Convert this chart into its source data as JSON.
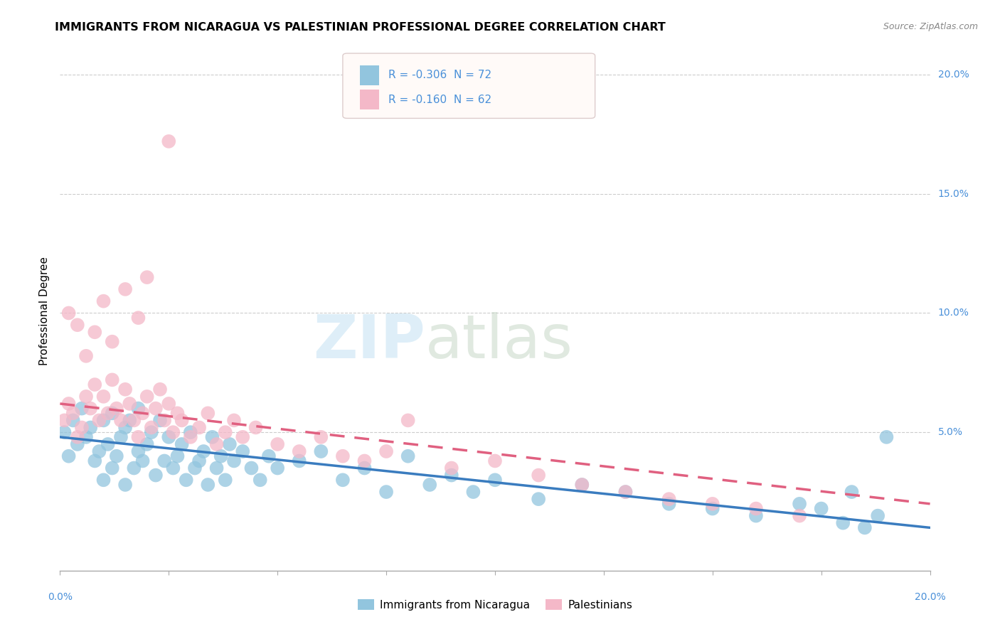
{
  "title": "IMMIGRANTS FROM NICARAGUA VS PALESTINIAN PROFESSIONAL DEGREE CORRELATION CHART",
  "source": "Source: ZipAtlas.com",
  "ylabel": "Professional Degree",
  "legend_blue_r": "-0.306",
  "legend_blue_n": "72",
  "legend_pink_r": "-0.160",
  "legend_pink_n": "62",
  "legend_label_blue": "Immigrants from Nicaragua",
  "legend_label_pink": "Palestinians",
  "color_blue": "#92c5de",
  "color_pink": "#f4b8c8",
  "line_blue": "#3a7cbf",
  "line_pink": "#e06080",
  "xmin": 0.0,
  "xmax": 0.2,
  "ymin": -0.008,
  "ymax": 0.21,
  "scatter_blue_x": [
    0.001,
    0.002,
    0.003,
    0.004,
    0.005,
    0.006,
    0.007,
    0.008,
    0.009,
    0.01,
    0.01,
    0.011,
    0.012,
    0.012,
    0.013,
    0.014,
    0.015,
    0.015,
    0.016,
    0.017,
    0.018,
    0.018,
    0.019,
    0.02,
    0.021,
    0.022,
    0.023,
    0.024,
    0.025,
    0.026,
    0.027,
    0.028,
    0.029,
    0.03,
    0.031,
    0.032,
    0.033,
    0.034,
    0.035,
    0.036,
    0.037,
    0.038,
    0.039,
    0.04,
    0.042,
    0.044,
    0.046,
    0.048,
    0.05,
    0.055,
    0.06,
    0.065,
    0.07,
    0.075,
    0.08,
    0.085,
    0.09,
    0.095,
    0.1,
    0.11,
    0.12,
    0.13,
    0.14,
    0.15,
    0.16,
    0.17,
    0.175,
    0.18,
    0.182,
    0.185,
    0.188,
    0.19
  ],
  "scatter_blue_y": [
    0.05,
    0.04,
    0.055,
    0.045,
    0.06,
    0.048,
    0.052,
    0.038,
    0.042,
    0.055,
    0.03,
    0.045,
    0.035,
    0.058,
    0.04,
    0.048,
    0.052,
    0.028,
    0.055,
    0.035,
    0.042,
    0.06,
    0.038,
    0.045,
    0.05,
    0.032,
    0.055,
    0.038,
    0.048,
    0.035,
    0.04,
    0.045,
    0.03,
    0.05,
    0.035,
    0.038,
    0.042,
    0.028,
    0.048,
    0.035,
    0.04,
    0.03,
    0.045,
    0.038,
    0.042,
    0.035,
    0.03,
    0.04,
    0.035,
    0.038,
    0.042,
    0.03,
    0.035,
    0.025,
    0.04,
    0.028,
    0.032,
    0.025,
    0.03,
    0.022,
    0.028,
    0.025,
    0.02,
    0.018,
    0.015,
    0.02,
    0.018,
    0.012,
    0.025,
    0.01,
    0.015,
    0.048
  ],
  "scatter_pink_x": [
    0.001,
    0.002,
    0.003,
    0.004,
    0.005,
    0.006,
    0.007,
    0.008,
    0.009,
    0.01,
    0.011,
    0.012,
    0.013,
    0.014,
    0.015,
    0.016,
    0.017,
    0.018,
    0.019,
    0.02,
    0.021,
    0.022,
    0.023,
    0.024,
    0.025,
    0.026,
    0.027,
    0.028,
    0.03,
    0.032,
    0.034,
    0.036,
    0.038,
    0.04,
    0.042,
    0.045,
    0.05,
    0.055,
    0.06,
    0.065,
    0.07,
    0.075,
    0.08,
    0.09,
    0.1,
    0.11,
    0.12,
    0.13,
    0.14,
    0.15,
    0.16,
    0.17,
    0.002,
    0.004,
    0.006,
    0.008,
    0.01,
    0.012,
    0.015,
    0.018,
    0.02,
    0.025
  ],
  "scatter_pink_y": [
    0.055,
    0.062,
    0.058,
    0.048,
    0.052,
    0.065,
    0.06,
    0.07,
    0.055,
    0.065,
    0.058,
    0.072,
    0.06,
    0.055,
    0.068,
    0.062,
    0.055,
    0.048,
    0.058,
    0.065,
    0.052,
    0.06,
    0.068,
    0.055,
    0.062,
    0.05,
    0.058,
    0.055,
    0.048,
    0.052,
    0.058,
    0.045,
    0.05,
    0.055,
    0.048,
    0.052,
    0.045,
    0.042,
    0.048,
    0.04,
    0.038,
    0.042,
    0.055,
    0.035,
    0.038,
    0.032,
    0.028,
    0.025,
    0.022,
    0.02,
    0.018,
    0.015,
    0.1,
    0.095,
    0.082,
    0.092,
    0.105,
    0.088,
    0.11,
    0.098,
    0.115,
    0.172
  ]
}
